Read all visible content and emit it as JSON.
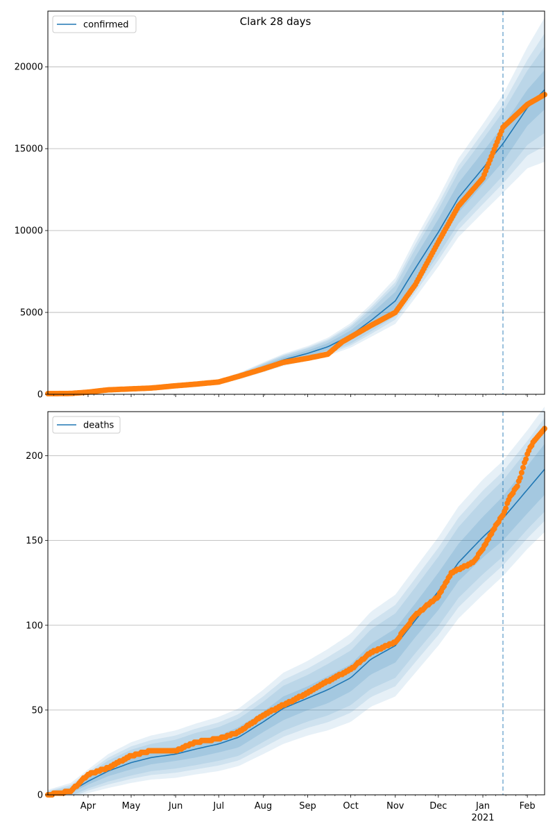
{
  "figure": {
    "title": "Clark 28 days"
  },
  "colors": {
    "model": "#1f77b4",
    "observed": "#ff7f0e",
    "band": "#1f77b4",
    "grid": "#b0b0b0",
    "forecast_line": "#1f77b4"
  },
  "x_axis": {
    "month_ticks": [
      {
        "date": "2020-04-01",
        "label": "Apr"
      },
      {
        "date": "2020-05-01",
        "label": "May"
      },
      {
        "date": "2020-06-01",
        "label": "Jun"
      },
      {
        "date": "2020-07-01",
        "label": "Jul"
      },
      {
        "date": "2020-08-01",
        "label": "Aug"
      },
      {
        "date": "2020-09-01",
        "label": "Sep"
      },
      {
        "date": "2020-10-01",
        "label": "Oct"
      },
      {
        "date": "2020-11-01",
        "label": "Nov"
      },
      {
        "date": "2020-12-01",
        "label": "Dec"
      },
      {
        "date": "2021-01-01",
        "label": "Jan"
      },
      {
        "date": "2021-02-01",
        "label": "Feb"
      }
    ],
    "year_label": "2021"
  },
  "chart_data": [
    {
      "type": "line",
      "legend": "confirmed",
      "legend_position": "top-left",
      "grid": "horizontal",
      "xlim": [
        "2020-03-04",
        "2021-02-13"
      ],
      "ylim": [
        0,
        23400
      ],
      "yticks": [
        0,
        5000,
        10000,
        15000,
        20000
      ],
      "ytick_labels": [
        "0",
        "5000",
        "10000",
        "15000",
        "20000"
      ],
      "forecast_start": "2021-01-15",
      "model": {
        "x": [
          "2020-03-04",
          "2020-03-20",
          "2020-04-01",
          "2020-04-15",
          "2020-05-01",
          "2020-05-15",
          "2020-06-01",
          "2020-06-15",
          "2020-07-01",
          "2020-07-15",
          "2020-08-01",
          "2020-08-15",
          "2020-09-01",
          "2020-09-15",
          "2020-10-01",
          "2020-10-15",
          "2020-11-01",
          "2020-11-15",
          "2020-12-01",
          "2020-12-15",
          "2021-01-01",
          "2021-01-15",
          "2021-02-01",
          "2021-02-13"
        ],
        "y": [
          50,
          60,
          150,
          270,
          320,
          380,
          500,
          600,
          750,
          1100,
          1650,
          2100,
          2500,
          2900,
          3600,
          4500,
          5700,
          7700,
          9900,
          12000,
          13800,
          15300,
          17500,
          18600
        ],
        "band_inner_halfwidth": [
          5,
          8,
          15,
          20,
          25,
          30,
          35,
          40,
          50,
          80,
          120,
          150,
          180,
          220,
          300,
          400,
          550,
          700,
          800,
          900,
          1000,
          1100,
          1100,
          1200
        ],
        "band_outer_halfwidth": [
          20,
          30,
          50,
          60,
          70,
          80,
          90,
          110,
          140,
          200,
          300,
          370,
          450,
          550,
          750,
          1000,
          1400,
          1800,
          2100,
          2400,
          2700,
          3000,
          3700,
          4400
        ]
      },
      "observed": {
        "x": [
          "2020-03-04",
          "2020-03-20",
          "2020-04-01",
          "2020-04-15",
          "2020-05-01",
          "2020-05-15",
          "2020-06-01",
          "2020-06-15",
          "2020-07-01",
          "2020-07-15",
          "2020-08-01",
          "2020-08-15",
          "2020-09-01",
          "2020-09-15",
          "2020-09-25",
          "2020-10-01",
          "2020-10-15",
          "2020-11-01",
          "2020-11-15",
          "2020-12-01",
          "2020-12-15",
          "2021-01-01",
          "2021-01-15",
          "2021-02-01",
          "2021-02-13"
        ],
        "y": [
          40,
          50,
          130,
          270,
          330,
          380,
          520,
          620,
          750,
          1100,
          1550,
          1950,
          2200,
          2450,
          3200,
          3500,
          4200,
          5000,
          6700,
          9300,
          11500,
          13200,
          16300,
          17700,
          18300
        ]
      }
    },
    {
      "type": "line",
      "legend": "deaths",
      "legend_position": "top-left",
      "grid": "horizontal",
      "xlim": [
        "2020-03-04",
        "2021-02-13"
      ],
      "ylim": [
        0,
        226
      ],
      "yticks": [
        0,
        50,
        100,
        150,
        200
      ],
      "ytick_labels": [
        "0",
        "50",
        "100",
        "150",
        "200"
      ],
      "forecast_start": "2021-01-15",
      "model": {
        "x": [
          "2020-03-04",
          "2020-03-20",
          "2020-04-01",
          "2020-04-15",
          "2020-05-01",
          "2020-05-15",
          "2020-06-01",
          "2020-06-15",
          "2020-07-01",
          "2020-07-15",
          "2020-08-01",
          "2020-08-15",
          "2020-09-01",
          "2020-09-15",
          "2020-10-01",
          "2020-10-15",
          "2020-11-01",
          "2020-11-15",
          "2020-12-01",
          "2020-12-15",
          "2021-01-01",
          "2021-01-15",
          "2021-02-01",
          "2021-02-13"
        ],
        "y": [
          0,
          2,
          8,
          14,
          19,
          22,
          24,
          27,
          30,
          34,
          43,
          51,
          57,
          62,
          69,
          80,
          88,
          103,
          120,
          137,
          152,
          163,
          180,
          192
        ],
        "band_inner_halfwidth": [
          1,
          1,
          2,
          3,
          4,
          4,
          4,
          5,
          5,
          6,
          6,
          7,
          7,
          8,
          8,
          9,
          10,
          10,
          11,
          11,
          12,
          13,
          14,
          15
        ],
        "band_outer_halfwidth": [
          3,
          5,
          7,
          10,
          12,
          13,
          14,
          15,
          16,
          17,
          19,
          21,
          22,
          24,
          26,
          28,
          30,
          31,
          32,
          33,
          34,
          34,
          35,
          37
        ]
      },
      "observed": {
        "x": [
          "2020-03-04",
          "2020-03-20",
          "2020-04-01",
          "2020-04-15",
          "2020-05-01",
          "2020-05-15",
          "2020-06-01",
          "2020-06-15",
          "2020-07-01",
          "2020-07-15",
          "2020-08-01",
          "2020-08-15",
          "2020-09-01",
          "2020-09-15",
          "2020-10-01",
          "2020-10-15",
          "2020-11-01",
          "2020-11-15",
          "2020-12-01",
          "2020-12-10",
          "2020-12-25",
          "2021-01-01",
          "2021-01-10",
          "2021-01-15",
          "2021-01-20",
          "2021-01-25",
          "2021-02-01",
          "2021-02-05",
          "2021-02-13"
        ],
        "y": [
          0,
          2,
          12,
          16,
          23,
          26,
          26,
          31,
          33,
          37,
          47,
          53,
          60,
          67,
          74,
          84,
          90,
          106,
          117,
          131,
          137,
          145,
          159,
          165,
          176,
          182,
          201,
          208,
          216
        ]
      }
    }
  ]
}
